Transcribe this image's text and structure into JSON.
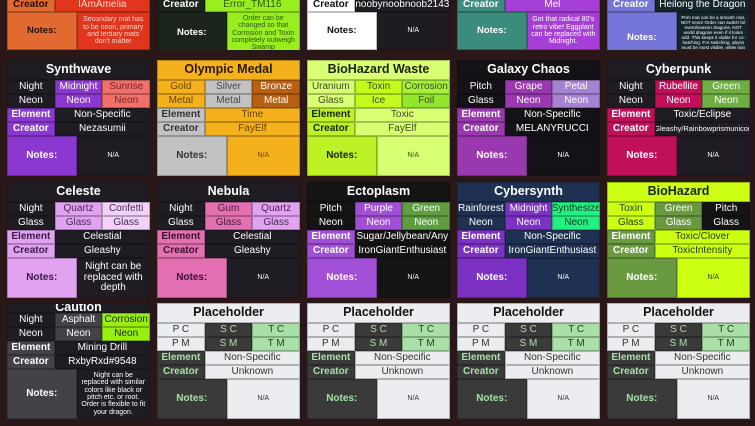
{
  "labels": {
    "element": "Element",
    "creator": "Creator",
    "notes": "Notes:"
  },
  "top_cards": [
    {
      "creator": "IAmAmelia",
      "notes": "Secondary mat has to be neon, primary and tertiary mats don't matter",
      "label_bg": "#e2692f",
      "label_fg": "#2a0e00",
      "val_bg": "#e2351d",
      "val_fg": "#ffd6c8"
    },
    {
      "creator": "Error_TM116",
      "notes": "Order can be changed so that Corrosion and Toxin completely outweigh Swamp",
      "label_bg": "#1c251c",
      "label_fg": "#ffffff",
      "val_bg": "#98ee1f",
      "val_fg": "#2f5a10"
    },
    {
      "creator": "noobynoobnoob2143",
      "notes": "N/A",
      "label_bg": "#ffffff",
      "label_fg": "#111111",
      "val_bg": "#1f1b22",
      "val_fg": "#ffffff"
    },
    {
      "creator": "Mel",
      "notes": "Got that radical 80's retro vibe! Eggplant can be replaced with Midnight.",
      "label_bg": "#3a8c7c",
      "label_fg": "#ffffff",
      "val_bg": "#a53fd6",
      "val_fg": "#ffffff"
    },
    {
      "creator": "Heilong the Dragon",
      "notes": "Prim mat can be a smooth mat, NOT neon! Order can switch for event/season dragons, NOT world dragons even if it looks odd. This keeps it viable for co-hatching. For switching, abyss must be most visible, while rain follows, drip should be least visible.",
      "label_bg": "#7474d6",
      "label_fg": "#ffffff",
      "val_bg": "#15252a",
      "val_fg": "#ffffff",
      "tiny": true
    }
  ],
  "cards": [
    {
      "title": "Synthwave",
      "bg": "#201c24",
      "fg": "#ffffff",
      "title_bg": "#201c24",
      "title_fg": "#ffffff",
      "label_bg": "#8a38d0",
      "label_fg": "#ffffff",
      "mats": [
        [
          {
            "t": "Night"
          },
          {
            "t": "Midnight",
            "bg": "#8a38d0",
            "fg": "#ffffff"
          },
          {
            "t": "Sunrise",
            "bg": "#f0706a",
            "fg": "#7a1f24"
          }
        ],
        [
          {
            "t": "Neon"
          },
          {
            "t": "Neon",
            "bg": "#8a38d0",
            "fg": "#ffffff"
          },
          {
            "t": "Neon",
            "bg": "#f0706a",
            "fg": "#7a1f24"
          }
        ]
      ],
      "element": "Non-Specific",
      "creator": "Nezasumii",
      "notes": "N/A"
    },
    {
      "title": "Olympic Medal",
      "bg": "#f5b11b",
      "fg": "#6a4300",
      "title_bg": "#f5b11b",
      "title_fg": "#2a1a00",
      "label_bg": "#c2c2c2",
      "label_fg": "#333333",
      "mats": [
        [
          {
            "t": "Gold",
            "fg": "#6a4300"
          },
          {
            "t": "Silver",
            "bg": "#c2c2c2",
            "fg": "#444444"
          },
          {
            "t": "Bronze",
            "bg": "#b85f10",
            "fg": "#ffffff"
          }
        ],
        [
          {
            "t": "Metal",
            "fg": "#6a4300"
          },
          {
            "t": "Metal",
            "bg": "#c2c2c2",
            "fg": "#444444"
          },
          {
            "t": "Metal",
            "bg": "#b85f10",
            "fg": "#ffffff"
          }
        ]
      ],
      "element": "Time",
      "creator": "FayElf",
      "notes": "N/A"
    },
    {
      "title": "BioHazard Waste",
      "bg": "#d9ff72",
      "fg": "#3c4a20",
      "title_bg": "#d9ff72",
      "title_fg": "#1a2208",
      "label_bg": "#bdf227",
      "label_fg": "#1a2208",
      "mats": [
        [
          {
            "t": "Uranium"
          },
          {
            "t": "Toxin",
            "bg": "#c4fb1c"
          },
          {
            "t": "Corrosion",
            "bg": "#a6f03a"
          }
        ],
        [
          {
            "t": "Glass"
          },
          {
            "t": "Ice",
            "bg": "#c4fb1c"
          },
          {
            "t": "Foil",
            "bg": "#92e62e"
          }
        ]
      ],
      "element": "Toxic",
      "creator": "FayElf",
      "notes": "N/A"
    },
    {
      "title": "Galaxy Chaos",
      "bg": "#141217",
      "fg": "#ffffff",
      "title_bg": "#141217",
      "title_fg": "#ffffff",
      "label_bg": "#9a38b0",
      "label_fg": "#ffffff",
      "mats": [
        [
          {
            "t": "Pitch"
          },
          {
            "t": "Grape",
            "bg": "#9a38b0",
            "fg": "#ffffff"
          },
          {
            "t": "Petal",
            "bg": "#a682d2",
            "fg": "#ffffff"
          }
        ],
        [
          {
            "t": "Glass"
          },
          {
            "t": "Neon",
            "bg": "#9a38b0",
            "fg": "#ffffff"
          },
          {
            "t": "Neon",
            "bg": "#a682d2",
            "fg": "#ffffff"
          }
        ]
      ],
      "element": "Non-Specific",
      "creator": "MELANYRUCCI",
      "notes": "N/A"
    },
    {
      "title": "Cyberpunk",
      "bg": "#201c24",
      "fg": "#ffffff",
      "title_bg": "#201c24",
      "title_fg": "#ffffff",
      "label_bg": "#c0105a",
      "label_fg": "#ffffff",
      "mats": [
        [
          {
            "t": "Night"
          },
          {
            "t": "Rubellite",
            "bg": "#c0105a",
            "fg": "#ffffff"
          },
          {
            "t": "Green",
            "bg": "#6fae42",
            "fg": "#ffffff"
          }
        ],
        [
          {
            "t": "Neon"
          },
          {
            "t": "Neon",
            "bg": "#c0105a",
            "fg": "#ffffff"
          },
          {
            "t": "Neon",
            "bg": "#6fae42",
            "fg": "#ffffff"
          }
        ]
      ],
      "element": "Toxic/Eclipse",
      "creator": "Gleashy/Rainbowprismunicor",
      "creator_small": true,
      "notes": "N/A"
    },
    {
      "title": "Celeste",
      "bg": "#201c24",
      "fg": "#ffffff",
      "title_bg": "#201c24",
      "title_fg": "#ffffff",
      "label_bg": "#e2a2f2",
      "label_fg": "#3a1a44",
      "mats": [
        [
          {
            "t": "Night"
          },
          {
            "t": "Quartz",
            "bg": "#e2a2f2",
            "fg": "#4a2a55"
          },
          {
            "t": "Confetti",
            "bg": "#f2d2f8",
            "fg": "#4a2a55"
          }
        ],
        [
          {
            "t": "Glass"
          },
          {
            "t": "Glass",
            "bg": "#e2a2f2",
            "fg": "#4a2a55"
          },
          {
            "t": "Glass",
            "bg": "#f2d2f8",
            "fg": "#4a2a55"
          }
        ]
      ],
      "element": "Celestial",
      "creator": "Gleashy",
      "notes": "Night can be replaced with depth",
      "notes_large": true
    },
    {
      "title": "Nebula",
      "bg": "#201c24",
      "fg": "#ffffff",
      "title_bg": "#201c24",
      "title_fg": "#ffffff",
      "label_bg": "#e270b2",
      "label_fg": "#3a1030",
      "mats": [
        [
          {
            "t": "Night"
          },
          {
            "t": "Gum",
            "bg": "#e270b2",
            "fg": "#4a1a3a"
          },
          {
            "t": "Quartz",
            "bg": "#e2a2f2",
            "fg": "#4a2a55"
          }
        ],
        [
          {
            "t": "Glass"
          },
          {
            "t": "Glass",
            "bg": "#e270b2",
            "fg": "#4a1a3a"
          },
          {
            "t": "Glass",
            "bg": "#e2a2f2",
            "fg": "#4a2a55"
          }
        ]
      ],
      "element": "Celestial",
      "creator": "Gleashy",
      "notes": "N/A"
    },
    {
      "title": "Ectoplasm",
      "bg": "#141414",
      "fg": "#ffffff",
      "title_bg": "#141414",
      "title_fg": "#ffffff",
      "label_bg": "#a24fd8",
      "label_fg": "#ffffff",
      "mats": [
        [
          {
            "t": "Pitch"
          },
          {
            "t": "Purple",
            "bg": "#a24fd8",
            "fg": "#ffffff"
          },
          {
            "t": "Green",
            "bg": "#5f9e40",
            "fg": "#ffffff"
          }
        ],
        [
          {
            "t": "Neon"
          },
          {
            "t": "Neon",
            "bg": "#a24fd8",
            "fg": "#ffffff"
          },
          {
            "t": "Neon",
            "bg": "#5f9e40",
            "fg": "#ffffff"
          }
        ]
      ],
      "element": "Sugar/Jellybean/Any",
      "creator": "IronGiantEnthusiast",
      "notes": "N/A"
    },
    {
      "title": "Cybersynth",
      "bg": "#1f3152",
      "fg": "#ffffff",
      "title_bg": "#1f3152",
      "title_fg": "#ffffff",
      "label_bg": "#7b31c2",
      "label_fg": "#ffffff",
      "mats": [
        [
          {
            "t": "Rainforest"
          },
          {
            "t": "Midnight",
            "bg": "#7b31c2",
            "fg": "#ffffff"
          },
          {
            "t": "Synthesize",
            "bg": "#22f082",
            "fg": "#0a3a20"
          }
        ],
        [
          {
            "t": "Neon"
          },
          {
            "t": "Neon",
            "bg": "#7b31c2",
            "fg": "#ffffff"
          },
          {
            "t": "Neon",
            "bg": "#22f082",
            "fg": "#0a3a20"
          }
        ]
      ],
      "element": "Non-Specific",
      "creator": "IronGiantEnthusiast",
      "notes": "N/A"
    },
    {
      "title": "BioHazard",
      "bg": "#ccff12",
      "fg": "#2a3a08",
      "title_bg": "#ccff12",
      "title_fg": "#1a2208",
      "label_bg": "#6a9a40",
      "label_fg": "#ffffff",
      "mats": [
        [
          {
            "t": "Toxin"
          },
          {
            "t": "Green",
            "bg": "#6a9a40",
            "fg": "#ffffff"
          },
          {
            "t": "Pitch",
            "bg": "#141414",
            "fg": "#ffffff"
          }
        ],
        [
          {
            "t": "Glass"
          },
          {
            "t": "Glass",
            "bg": "#6a9a40",
            "fg": "#ffffff"
          },
          {
            "t": "Glass",
            "bg": "#141414",
            "fg": "#ffffff"
          }
        ]
      ],
      "element": "Toxic/Clover",
      "creator": "ToxicIntensity",
      "notes": "N/A"
    },
    {
      "title": "Caution",
      "bg": "#201c24",
      "fg": "#ffffff",
      "title_bg": "#201c24",
      "title_fg": "#ffffff",
      "label_bg": "#444248",
      "label_fg": "#ffffff",
      "mats": [
        [
          {
            "t": "Night"
          },
          {
            "t": "Asphalt",
            "bg": "#444248",
            "fg": "#ffffff"
          },
          {
            "t": "Corrosion",
            "bg": "#99ee10",
            "fg": "#1a2a00"
          }
        ],
        [
          {
            "t": "Neon"
          },
          {
            "t": "Neon",
            "bg": "#444248",
            "fg": "#ffffff"
          },
          {
            "t": "Neon",
            "bg": "#99ee10",
            "fg": "#1a2a00"
          }
        ]
      ],
      "element": "Mining Drill",
      "creator": "RxbyRxd#9548",
      "notes": "Night can be replaced with similar colors like black or pitch etc. or root. Order is flexible to fit your dragon."
    },
    {
      "title": "Placeholder",
      "bg": "#ecedf0",
      "fg": "#333333",
      "title_bg": "#ecedf0",
      "title_fg": "#111111",
      "label_bg": "#3a3a3a",
      "label_fg": "#a8e0a8",
      "mats": [
        [
          {
            "t": "P C"
          },
          {
            "t": "S C",
            "bg": "#3a3a3a",
            "fg": "#a8e0a8"
          },
          {
            "t": "T C",
            "bg": "#a8e0a8",
            "fg": "#2a3a2a"
          }
        ],
        [
          {
            "t": "P M"
          },
          {
            "t": "S M",
            "bg": "#3a3a3a",
            "fg": "#a8e0a8"
          },
          {
            "t": "T M",
            "bg": "#a8e0a8",
            "fg": "#2a3a2a"
          }
        ]
      ],
      "element": "Non-Specific",
      "creator": "Unknown",
      "notes": "N/A"
    },
    {
      "title": "Placeholder",
      "bg": "#ecedf0",
      "fg": "#333333",
      "title_bg": "#ecedf0",
      "title_fg": "#111111",
      "label_bg": "#3a3a3a",
      "label_fg": "#a8e0a8",
      "mats": [
        [
          {
            "t": "P C"
          },
          {
            "t": "S C",
            "bg": "#3a3a3a",
            "fg": "#a8e0a8"
          },
          {
            "t": "T C",
            "bg": "#a8e0a8",
            "fg": "#2a3a2a"
          }
        ],
        [
          {
            "t": "P M"
          },
          {
            "t": "S M",
            "bg": "#3a3a3a",
            "fg": "#a8e0a8"
          },
          {
            "t": "T M",
            "bg": "#a8e0a8",
            "fg": "#2a3a2a"
          }
        ]
      ],
      "element": "Non-Specific",
      "creator": "Unknown",
      "notes": "N/A"
    },
    {
      "title": "Placeholder",
      "bg": "#ecedf0",
      "fg": "#333333",
      "title_bg": "#ecedf0",
      "title_fg": "#111111",
      "label_bg": "#3a3a3a",
      "label_fg": "#a8e0a8",
      "mats": [
        [
          {
            "t": "P C"
          },
          {
            "t": "S C",
            "bg": "#3a3a3a",
            "fg": "#a8e0a8"
          },
          {
            "t": "T C",
            "bg": "#a8e0a8",
            "fg": "#2a3a2a"
          }
        ],
        [
          {
            "t": "P M"
          },
          {
            "t": "S M",
            "bg": "#3a3a3a",
            "fg": "#a8e0a8"
          },
          {
            "t": "T M",
            "bg": "#a8e0a8",
            "fg": "#2a3a2a"
          }
        ]
      ],
      "element": "Non-Specific",
      "creator": "Unknown",
      "notes": "N/A"
    },
    {
      "title": "Placeholder",
      "bg": "#ecedf0",
      "fg": "#333333",
      "title_bg": "#ecedf0",
      "title_fg": "#111111",
      "label_bg": "#3a3a3a",
      "label_fg": "#a8e0a8",
      "mats": [
        [
          {
            "t": "P C"
          },
          {
            "t": "S C",
            "bg": "#3a3a3a",
            "fg": "#a8e0a8"
          },
          {
            "t": "T C",
            "bg": "#a8e0a8",
            "fg": "#2a3a2a"
          }
        ],
        [
          {
            "t": "P M"
          },
          {
            "t": "S M",
            "bg": "#3a3a3a",
            "fg": "#a8e0a8"
          },
          {
            "t": "T M",
            "bg": "#a8e0a8",
            "fg": "#2a3a2a"
          }
        ]
      ],
      "element": "Non-Specific",
      "creator": "Unknown",
      "notes": "N/A"
    }
  ]
}
